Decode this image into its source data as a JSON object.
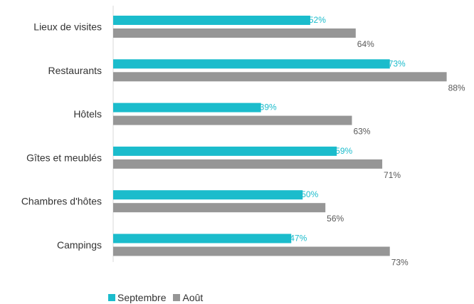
{
  "chart_data": {
    "type": "bar",
    "orientation": "horizontal",
    "categories": [
      "Lieux de visites",
      "Restaurants",
      "Hôtels",
      "Gîtes et meublés",
      "Chambres d'hôtes",
      "Campings"
    ],
    "series": [
      {
        "name": "Septembre",
        "color": "#1bbccc",
        "values": [
          52,
          73,
          39,
          59,
          50,
          47
        ],
        "labels": [
          "52%",
          "73%",
          "39%",
          "59%",
          "50%",
          "47%"
        ]
      },
      {
        "name": "Août",
        "color": "#969696",
        "values": [
          64,
          88,
          63,
          71,
          56,
          73
        ],
        "labels": [
          "64%",
          "88%",
          "63%",
          "71%",
          "56%",
          "73%"
        ]
      }
    ],
    "xlim": [
      0,
      100
    ],
    "grid": false,
    "legend_position": "bottom"
  },
  "legend": {
    "items": [
      "Septembre",
      "Août"
    ]
  }
}
